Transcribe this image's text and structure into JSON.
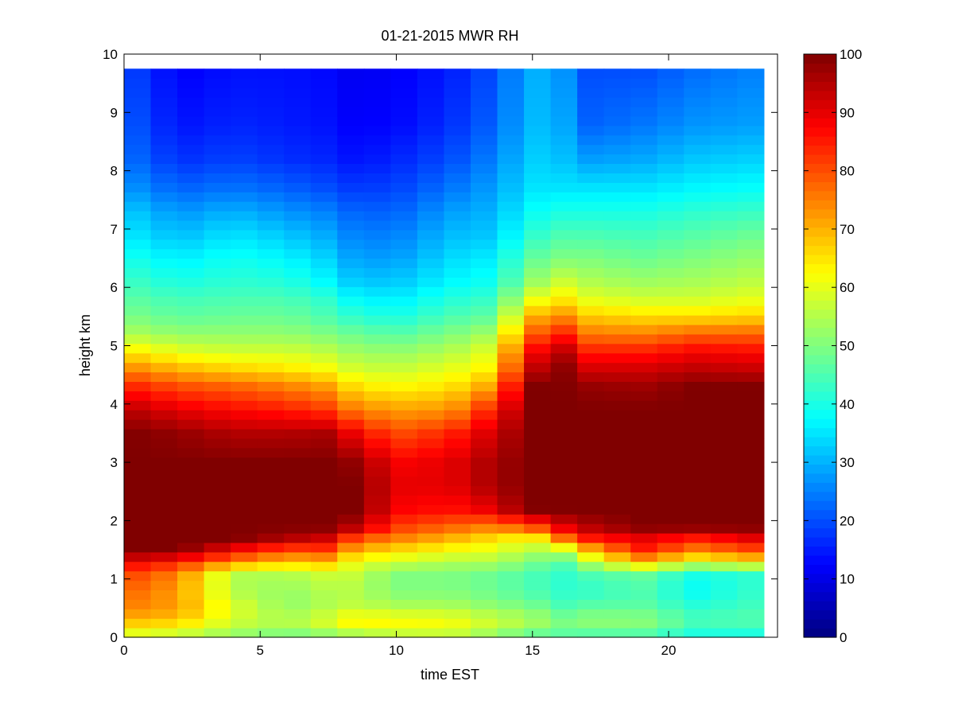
{
  "chart_data": {
    "type": "heatmap",
    "title": "01-21-2015 MWR RH",
    "xlabel": "time EST",
    "ylabel": "height km",
    "xlim": [
      0,
      24
    ],
    "ylim": [
      0,
      10
    ],
    "x_ticks": [
      "0",
      "5",
      "10",
      "15",
      "20"
    ],
    "y_ticks": [
      "0",
      "1",
      "2",
      "3",
      "4",
      "5",
      "6",
      "7",
      "8",
      "9",
      "10"
    ],
    "colorbar": {
      "colormap": "jet",
      "range": [
        0,
        100
      ],
      "ticks": [
        "0",
        "10",
        "20",
        "30",
        "40",
        "50",
        "60",
        "70",
        "80",
        "90",
        "100"
      ]
    },
    "x": [
      0,
      1,
      2,
      3,
      4,
      5,
      6,
      7,
      8,
      9,
      10,
      11,
      12,
      13,
      14,
      15,
      16,
      17,
      18,
      19,
      20,
      21,
      22,
      23
    ],
    "x_extent": [
      0,
      23.5
    ],
    "y_top": 9.75,
    "profile_heights": [
      0,
      0.1,
      0.3,
      0.5,
      0.8,
      1.1,
      1.3,
      1.5,
      1.7,
      1.9,
      2.2,
      2.6,
      3.0,
      3.5,
      3.9,
      4.3,
      4.6,
      4.9,
      5.2,
      5.5,
      5.8,
      6.1,
      6.5,
      6.9,
      7.3,
      7.7,
      8.2,
      8.8,
      9.75
    ],
    "profiles": [
      {
        "t": 0,
        "rh": [
          55,
          62,
          70,
          75,
          78,
          82,
          90,
          100,
          100,
          100,
          100,
          100,
          100,
          100,
          95,
          85,
          75,
          65,
          55,
          50,
          47,
          44,
          40,
          36,
          33,
          28,
          24,
          22,
          20
        ]
      },
      {
        "t": 2,
        "rh": [
          52,
          60,
          68,
          72,
          72,
          75,
          85,
          100,
          100,
          100,
          100,
          100,
          100,
          98,
          90,
          80,
          70,
          60,
          52,
          47,
          44,
          40,
          36,
          31,
          27,
          22,
          17,
          14,
          12
        ]
      },
      {
        "t": 4,
        "rh": [
          45,
          55,
          58,
          60,
          55,
          55,
          75,
          88,
          100,
          100,
          100,
          100,
          100,
          95,
          87,
          78,
          67,
          58,
          52,
          48,
          45,
          42,
          39,
          35,
          30,
          24,
          19,
          16,
          14
        ]
      },
      {
        "t": 6,
        "rh": [
          42,
          52,
          55,
          52,
          52,
          55,
          68,
          80,
          95,
          100,
          100,
          100,
          100,
          95,
          85,
          75,
          65,
          58,
          52,
          48,
          45,
          41,
          37,
          32,
          27,
          22,
          17,
          15,
          14
        ]
      },
      {
        "t": 7.5,
        "rh": [
          43,
          55,
          60,
          55,
          55,
          58,
          70,
          82,
          92,
          100,
          100,
          100,
          100,
          96,
          82,
          72,
          62,
          56,
          50,
          45,
          42,
          37,
          33,
          29,
          25,
          20,
          16,
          14,
          13
        ]
      },
      {
        "t": 8.5,
        "rh": [
          45,
          58,
          65,
          57,
          55,
          57,
          60,
          70,
          80,
          95,
          100,
          100,
          98,
          88,
          75,
          65,
          58,
          53,
          48,
          42,
          37,
          32,
          28,
          25,
          22,
          18,
          14,
          12,
          11
        ]
      },
      {
        "t": 10,
        "rh": [
          45,
          60,
          63,
          55,
          50,
          50,
          58,
          66,
          75,
          82,
          88,
          90,
          88,
          80,
          72,
          63,
          57,
          52,
          46,
          40,
          36,
          32,
          28,
          25,
          22,
          19,
          16,
          13,
          12
        ]
      },
      {
        "t": 12,
        "rh": [
          48,
          60,
          62,
          55,
          50,
          50,
          55,
          62,
          70,
          78,
          86,
          90,
          90,
          84,
          73,
          65,
          60,
          55,
          50,
          45,
          41,
          37,
          34,
          31,
          28,
          24,
          20,
          17,
          15
        ]
      },
      {
        "t": 13.5,
        "rh": [
          45,
          55,
          58,
          52,
          48,
          48,
          55,
          60,
          66,
          75,
          90,
          96,
          96,
          92,
          85,
          72,
          64,
          60,
          54,
          47,
          43,
          39,
          36,
          32,
          30,
          28,
          25,
          22,
          20
        ]
      },
      {
        "t": 15,
        "rh": [
          42,
          50,
          55,
          50,
          45,
          45,
          50,
          55,
          62,
          80,
          100,
          100,
          100,
          100,
          100,
          100,
          93,
          87,
          78,
          70,
          60,
          52,
          47,
          42,
          38,
          35,
          33,
          31,
          30
        ]
      },
      {
        "t": 16,
        "rh": [
          42,
          48,
          50,
          45,
          42,
          42,
          45,
          55,
          75,
          90,
          100,
          100,
          100,
          100,
          100,
          100,
          100,
          96,
          86,
          75,
          65,
          58,
          50,
          45,
          40,
          35,
          32,
          30,
          28
        ]
      },
      {
        "t": 17,
        "rh": [
          40,
          48,
          52,
          47,
          42,
          45,
          55,
          68,
          85,
          95,
          100,
          100,
          100,
          100,
          100,
          98,
          92,
          85,
          76,
          68,
          60,
          55,
          50,
          45,
          40,
          35,
          28,
          22,
          20
        ]
      },
      {
        "t": 19,
        "rh": [
          40,
          48,
          52,
          47,
          45,
          48,
          70,
          85,
          90,
          100,
          100,
          100,
          100,
          100,
          100,
          97,
          92,
          85,
          75,
          66,
          58,
          53,
          48,
          44,
          40,
          35,
          29,
          24,
          20
        ]
      },
      {
        "t": 21,
        "rh": [
          35,
          42,
          45,
          42,
          38,
          40,
          60,
          75,
          85,
          100,
          100,
          100,
          100,
          100,
          100,
          100,
          94,
          88,
          78,
          66,
          58,
          54,
          50,
          46,
          42,
          37,
          32,
          27,
          23
        ]
      },
      {
        "t": 23,
        "rh": [
          35,
          42,
          46,
          44,
          42,
          42,
          65,
          80,
          90,
          100,
          100,
          100,
          100,
          100,
          100,
          100,
          93,
          87,
          78,
          67,
          60,
          56,
          52,
          48,
          43,
          38,
          33,
          28,
          25
        ]
      }
    ]
  }
}
